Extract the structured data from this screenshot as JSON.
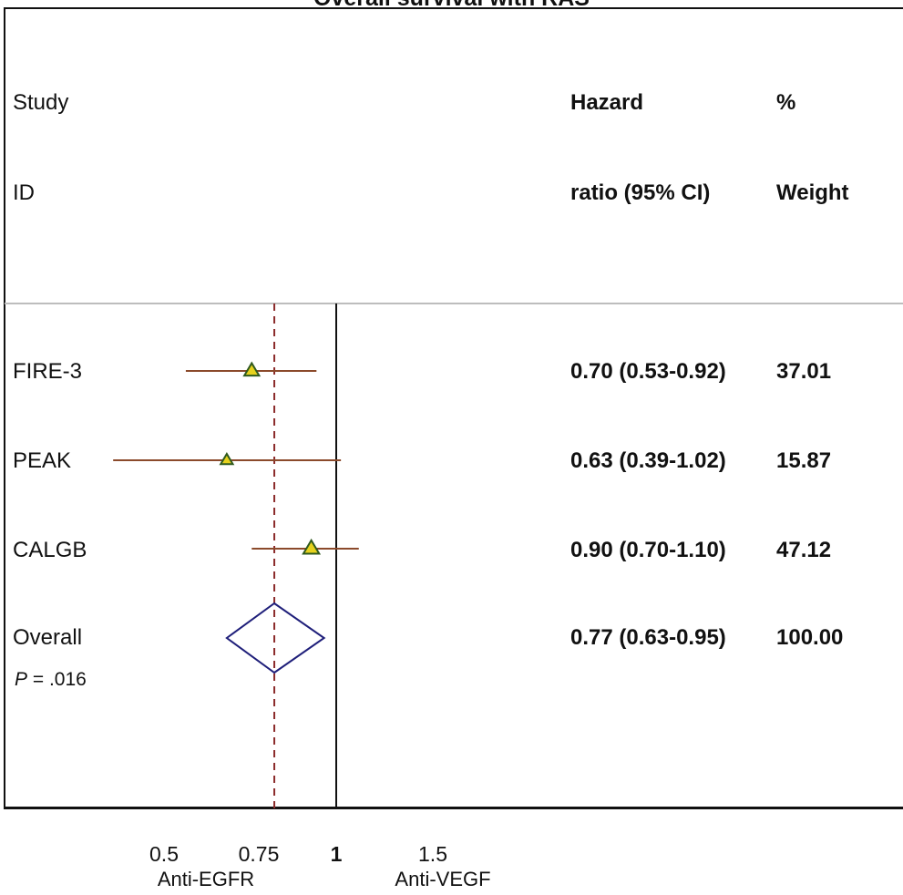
{
  "chart_data": {
    "type": "forest",
    "title": "Overall survival with RAS",
    "columns": {
      "study_header": [
        "Study",
        "ID"
      ],
      "hr_header": [
        "Hazard",
        "ratio (95% CI)"
      ],
      "weight_header": [
        "%",
        "Weight"
      ]
    },
    "studies": [
      {
        "id": "FIRE-3",
        "hr": 0.7,
        "lo": 0.53,
        "hi": 0.92,
        "label": "0.70 (0.53-0.92)",
        "weight": 37.01,
        "weight_label": "37.01"
      },
      {
        "id": "PEAK",
        "hr": 0.63,
        "lo": 0.39,
        "hi": 1.02,
        "label": "0.63 (0.39-1.02)",
        "weight": 15.87,
        "weight_label": "15.87"
      },
      {
        "id": "CALGB",
        "hr": 0.9,
        "lo": 0.7,
        "hi": 1.1,
        "label": "0.90 (0.70-1.10)",
        "weight": 47.12,
        "weight_label": "47.12"
      }
    ],
    "overall": {
      "id": "Overall",
      "hr": 0.77,
      "lo": 0.63,
      "hi": 0.95,
      "label": "0.77 (0.63-0.95)",
      "weight_label": "100.00",
      "p_prefix": "P",
      "p_value": " = .016"
    },
    "x_scale": "log",
    "x_ticks": [
      {
        "value": 0.5,
        "label": "0.5"
      },
      {
        "value": 0.75,
        "label": "0.75"
      },
      {
        "value": 1,
        "label": "1"
      },
      {
        "value": 1.5,
        "label": "1.5"
      }
    ],
    "x_side_labels": {
      "left": "Anti-EGFR",
      "right": "Anti-VEGF"
    },
    "null_line": 1,
    "colors": {
      "ci_line": "#8b4a2b",
      "marker_fill": "#e6d21e",
      "marker_edge": "#2f5a1e",
      "diamond": "#1f1f7a",
      "ref_dashed": "#8b2a2a",
      "frame": "#111111",
      "separator": "#bdbdbd"
    }
  }
}
